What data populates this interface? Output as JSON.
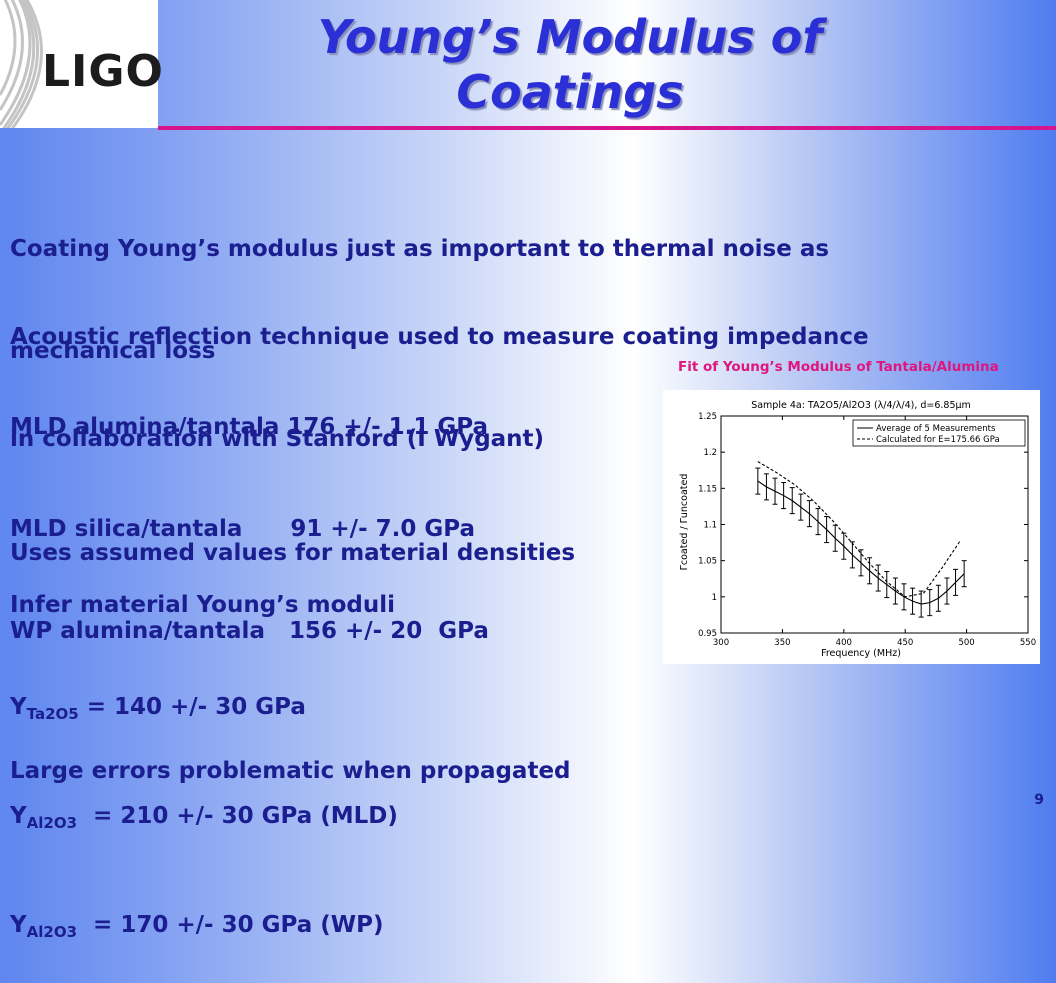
{
  "logo": {
    "text": "LIGO"
  },
  "title": {
    "line1": "Young’s Modulus of",
    "line2": "Coatings"
  },
  "bullets": {
    "b1_l1": "Coating Young’s modulus just as important to thermal noise as",
    "b1_l2": "mechanical loss",
    "b2_l1": "Acoustic reflection technique used to measure coating impedance",
    "b2_l2": "in collaboration with Stanford (I Wygant)",
    "b3_l1": "MLD alumina/tantala 176 +/- 1.1 GPa",
    "b3_l2": "MLD silica/tantala      91 +/- 7.0 GPa",
    "b3_l3": "WP alumina/tantala   156 +/- 20  GPa",
    "b4": "Uses assumed values for material densities",
    "b5_l1": "Infer material Young’s moduli",
    "y1_main": "Y",
    "y1_sub": "Ta2O5",
    "y1_val": " = 140 +/- 30 GPa",
    "y2_main": "Y",
    "y2_sub": "Al2O3",
    "y2_val": "  = 210 +/- 30 GPa (MLD)",
    "y3_main": "Y",
    "y3_sub": "Al2O3",
    "y3_val": "  = 170 +/- 30 GPa (WP)",
    "b6": "Large errors problematic when propagated"
  },
  "figure": {
    "caption": "Fit of Young’s Modulus of Tantala/Alumina"
  },
  "chart_data": {
    "type": "line",
    "title": "Sample 4a: TA2O5/Al2O3 (λ/4/λ/4), d=6.85µm",
    "xlabel": "Frequency (MHz)",
    "ylabel": "Γcoated / Γuncoated",
    "xlim": [
      300,
      550
    ],
    "ylim": [
      0.95,
      1.25
    ],
    "xticks": [
      "300",
      "350",
      "400",
      "450",
      "500",
      "550"
    ],
    "yticks": [
      "0.95",
      "1",
      "1.05",
      "1.1",
      "1.15",
      "1.2",
      "1.25"
    ],
    "legend": [
      "Average of 5 Measurements",
      "Calculated for E=175.66 GPa"
    ],
    "legend_position": "top-right",
    "series": [
      {
        "name": "Average of 5 Measurements",
        "style": "solid-with-errorbars",
        "x": [
          330,
          337,
          344,
          351,
          358,
          365,
          372,
          379,
          386,
          393,
          400,
          407,
          414,
          421,
          428,
          435,
          442,
          449,
          456,
          463,
          470,
          477,
          484,
          491,
          498
        ],
        "y": [
          1.16,
          1.152,
          1.146,
          1.14,
          1.133,
          1.124,
          1.115,
          1.104,
          1.093,
          1.081,
          1.07,
          1.058,
          1.047,
          1.036,
          1.026,
          1.017,
          1.008,
          1.0,
          0.994,
          0.99,
          0.992,
          0.998,
          1.008,
          1.02,
          1.032
        ],
        "err": [
          0.018,
          0.018,
          0.018,
          0.018,
          0.018,
          0.018,
          0.018,
          0.018,
          0.018,
          0.018,
          0.018,
          0.018,
          0.018,
          0.018,
          0.018,
          0.018,
          0.018,
          0.018,
          0.018,
          0.018,
          0.018,
          0.018,
          0.018,
          0.018,
          0.018
        ]
      },
      {
        "name": "Calculated for E=175.66 GPa",
        "style": "dashed",
        "x": [
          330,
          345,
          360,
          375,
          390,
          405,
          420,
          435,
          450,
          465,
          480,
          495
        ],
        "y": [
          1.187,
          1.172,
          1.155,
          1.133,
          1.107,
          1.078,
          1.048,
          1.021,
          1.0,
          1.005,
          1.04,
          1.078
        ]
      }
    ]
  },
  "page": {
    "number": "9"
  }
}
